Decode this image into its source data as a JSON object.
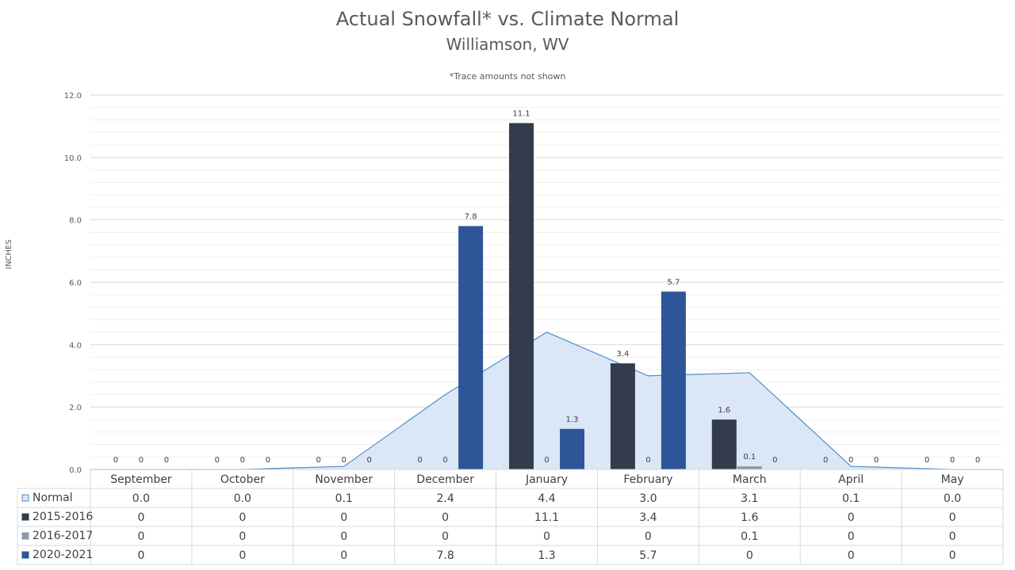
{
  "chart_data": {
    "type": "bar",
    "title": "Actual Snowfall* vs. Climate Normal",
    "subtitle": "Williamson, WV",
    "note": "*Trace amounts not shown",
    "ylabel": "INCHES",
    "ylim": [
      0,
      12
    ],
    "yticks": [
      "0.0",
      "2.0",
      "4.0",
      "6.0",
      "8.0",
      "10.0",
      "12.0"
    ],
    "categories": [
      "September",
      "October",
      "November",
      "December",
      "January",
      "February",
      "March",
      "April",
      "May"
    ],
    "area_series": {
      "name": "Normal",
      "values": [
        0.0,
        0.0,
        0.1,
        2.4,
        4.4,
        3.0,
        3.1,
        0.1,
        0.0
      ],
      "labels": [
        "0.0",
        "0.0",
        "0.1",
        "2.4",
        "4.4",
        "3.0",
        "3.1",
        "0.1",
        "0.0"
      ],
      "color": "#dbe7f6",
      "line_color": "#4e8cc8"
    },
    "series": [
      {
        "name": "2015-2016",
        "values": [
          0,
          0,
          0,
          0,
          11.1,
          3.4,
          1.6,
          0,
          0
        ],
        "labels": [
          "0",
          "0",
          "0",
          "0",
          "11.1",
          "3.4",
          "1.6",
          "0",
          "0"
        ],
        "color": "#323c4d"
      },
      {
        "name": "2016-2017",
        "values": [
          0,
          0,
          0,
          0,
          0,
          0,
          0.1,
          0,
          0
        ],
        "labels": [
          "0",
          "0",
          "0",
          "0",
          "0",
          "0",
          "0.1",
          "0",
          "0"
        ],
        "color": "#8e99a8"
      },
      {
        "name": "2020-2021",
        "values": [
          0,
          0,
          0,
          7.8,
          1.3,
          5.7,
          0,
          0,
          0
        ],
        "labels": [
          "0",
          "0",
          "0",
          "7.8",
          "1.3",
          "5.7",
          "0",
          "0",
          "0"
        ],
        "color": "#2e5597"
      }
    ],
    "grid": true,
    "legend": "data table"
  }
}
